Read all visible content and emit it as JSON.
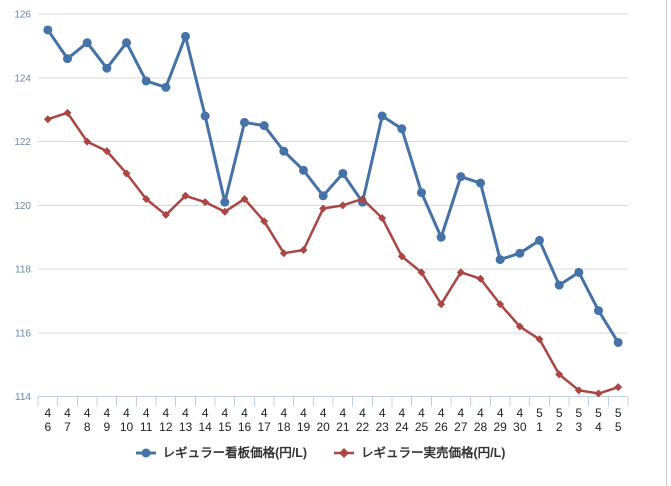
{
  "chart_data": {
    "type": "line",
    "title": "",
    "xlabel": "",
    "ylabel": "",
    "ylim": [
      114,
      126
    ],
    "ytick_step": 2,
    "grid": true,
    "legend_position": "bottom",
    "categories": [
      "4/6",
      "4/7",
      "4/8",
      "4/9",
      "4/10",
      "4/11",
      "4/12",
      "4/13",
      "4/14",
      "4/15",
      "4/16",
      "4/17",
      "4/18",
      "4/19",
      "4/20",
      "4/21",
      "4/22",
      "4/23",
      "4/24",
      "4/25",
      "4/26",
      "4/27",
      "4/28",
      "4/29",
      "4/30",
      "5/1",
      "5/2",
      "5/3",
      "5/4",
      "5/5"
    ],
    "series": [
      {
        "name": "レギュラー看板価格(円/L)",
        "color": "#4572A7",
        "marker": "circle",
        "values": [
          125.5,
          124.6,
          125.1,
          124.3,
          125.1,
          123.9,
          123.7,
          125.3,
          122.8,
          120.1,
          122.6,
          122.5,
          121.7,
          121.1,
          120.3,
          121.0,
          120.1,
          122.8,
          122.4,
          120.4,
          119.0,
          120.9,
          120.7,
          118.3,
          118.5,
          118.9,
          117.5,
          117.9,
          116.7,
          115.7
        ]
      },
      {
        "name": "レギュラー実売価格(円/L)",
        "color": "#AA4643",
        "marker": "diamond",
        "values": [
          122.7,
          122.9,
          122.0,
          121.7,
          121.0,
          120.2,
          119.7,
          120.3,
          120.1,
          119.8,
          120.2,
          119.5,
          118.5,
          118.6,
          119.9,
          120.0,
          120.2,
          119.6,
          118.4,
          117.9,
          116.9,
          117.9,
          117.7,
          116.9,
          116.2,
          115.8,
          114.7,
          114.2,
          114.1,
          114.3
        ]
      }
    ],
    "colors": {
      "grid_line": "#D8D8D8",
      "axis_line": "#C0D0E0",
      "tick": "#C0D0E0",
      "y_label": "#6D869F",
      "x_label": "#222222"
    }
  }
}
